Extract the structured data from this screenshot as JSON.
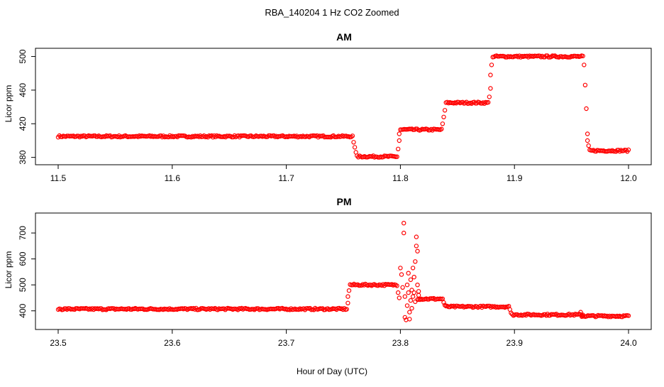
{
  "figure": {
    "title": "RBA_140204  1 Hz CO2 Zoomed",
    "xlabel": "Hour of Day (UTC)"
  },
  "colors": {
    "points": "#ff0000",
    "axes": "#000000"
  },
  "chart_data": [
    {
      "type": "scatter",
      "title": "AM",
      "xlabel": "",
      "ylabel": "Licor ppm",
      "xlim": [
        11.5,
        12.0
      ],
      "ylim": [
        378,
        503
      ],
      "xticks": [
        11.5,
        11.6,
        11.7,
        11.8,
        11.9,
        12.0
      ],
      "xtick_labels": [
        "11.5",
        "11.6",
        "11.7",
        "11.8",
        "11.9",
        "12.0"
      ],
      "yticks": [
        380,
        420,
        460,
        500
      ],
      "ytick_labels": [
        "380",
        "420",
        "460",
        "500"
      ],
      "marker": "open-circle",
      "grid": false,
      "segments": [
        {
          "x_start": 11.5,
          "x_end": 11.758,
          "y": 405
        },
        {
          "x_start": 11.762,
          "x_end": 11.797,
          "y": 381
        },
        {
          "x_start": 11.8,
          "x_end": 11.836,
          "y": 413
        },
        {
          "x_start": 11.84,
          "x_end": 11.877,
          "y": 445
        },
        {
          "x_start": 11.881,
          "x_end": 11.96,
          "y": 500
        },
        {
          "x_start": 11.966,
          "x_end": 12.0,
          "y": 388
        }
      ],
      "transitions": [
        {
          "x": 11.759,
          "y": 398
        },
        {
          "x": 11.76,
          "y": 392
        },
        {
          "x": 11.761,
          "y": 386
        },
        {
          "x": 11.798,
          "y": 390
        },
        {
          "x": 11.799,
          "y": 400
        },
        {
          "x": 11.799,
          "y": 408
        },
        {
          "x": 11.837,
          "y": 420
        },
        {
          "x": 11.838,
          "y": 428
        },
        {
          "x": 11.839,
          "y": 436
        },
        {
          "x": 11.878,
          "y": 452
        },
        {
          "x": 11.879,
          "y": 462
        },
        {
          "x": 11.879,
          "y": 478
        },
        {
          "x": 11.88,
          "y": 490
        },
        {
          "x": 11.961,
          "y": 490
        },
        {
          "x": 11.962,
          "y": 466
        },
        {
          "x": 11.963,
          "y": 438
        },
        {
          "x": 11.964,
          "y": 408
        },
        {
          "x": 11.964,
          "y": 400
        },
        {
          "x": 11.965,
          "y": 394
        }
      ]
    },
    {
      "type": "scatter",
      "title": "PM",
      "xlabel": "Hour of Day (UTC)",
      "ylabel": "Licor ppm",
      "xlim": [
        23.5,
        24.0
      ],
      "ylim": [
        350,
        755
      ],
      "xticks": [
        23.5,
        23.6,
        23.7,
        23.8,
        23.9,
        24.0
      ],
      "xtick_labels": [
        "23.5",
        "23.6",
        "23.7",
        "23.8",
        "23.9",
        "24.0"
      ],
      "yticks": [
        400,
        500,
        600,
        700
      ],
      "ytick_labels": [
        "400",
        "500",
        "600",
        "700"
      ],
      "marker": "open-circle",
      "grid": false,
      "segments": [
        {
          "x_start": 23.5,
          "x_end": 23.753,
          "y": 407
        },
        {
          "x_start": 23.756,
          "x_end": 23.797,
          "y": 500
        },
        {
          "x_start": 23.815,
          "x_end": 23.837,
          "y": 446
        },
        {
          "x_start": 23.84,
          "x_end": 23.895,
          "y": 416
        },
        {
          "x_start": 23.898,
          "x_end": 23.96,
          "y": 385
        },
        {
          "x_start": 23.96,
          "x_end": 24.0,
          "y": 380
        }
      ],
      "transitions": [
        {
          "x": 23.754,
          "y": 430
        },
        {
          "x": 23.754,
          "y": 455
        },
        {
          "x": 23.755,
          "y": 478
        },
        {
          "x": 23.798,
          "y": 470
        },
        {
          "x": 23.799,
          "y": 450
        },
        {
          "x": 23.8,
          "y": 565
        },
        {
          "x": 23.801,
          "y": 540
        },
        {
          "x": 23.802,
          "y": 490
        },
        {
          "x": 23.803,
          "y": 738
        },
        {
          "x": 23.803,
          "y": 700
        },
        {
          "x": 23.804,
          "y": 455
        },
        {
          "x": 23.804,
          "y": 375
        },
        {
          "x": 23.805,
          "y": 365
        },
        {
          "x": 23.806,
          "y": 420
        },
        {
          "x": 23.806,
          "y": 500
        },
        {
          "x": 23.807,
          "y": 545
        },
        {
          "x": 23.807,
          "y": 470
        },
        {
          "x": 23.808,
          "y": 395
        },
        {
          "x": 23.808,
          "y": 368
        },
        {
          "x": 23.809,
          "y": 440
        },
        {
          "x": 23.809,
          "y": 520
        },
        {
          "x": 23.81,
          "y": 480
        },
        {
          "x": 23.81,
          "y": 410
        },
        {
          "x": 23.811,
          "y": 455
        },
        {
          "x": 23.811,
          "y": 565
        },
        {
          "x": 23.812,
          "y": 530
        },
        {
          "x": 23.812,
          "y": 470
        },
        {
          "x": 23.813,
          "y": 590
        },
        {
          "x": 23.813,
          "y": 435
        },
        {
          "x": 23.814,
          "y": 685
        },
        {
          "x": 23.814,
          "y": 650
        },
        {
          "x": 23.815,
          "y": 630
        },
        {
          "x": 23.815,
          "y": 500
        },
        {
          "x": 23.816,
          "y": 475
        },
        {
          "x": 23.816,
          "y": 460
        },
        {
          "x": 23.838,
          "y": 432
        },
        {
          "x": 23.839,
          "y": 422
        },
        {
          "x": 23.896,
          "y": 405
        },
        {
          "x": 23.897,
          "y": 392
        },
        {
          "x": 23.958,
          "y": 395
        },
        {
          "x": 23.959,
          "y": 378
        }
      ]
    }
  ]
}
